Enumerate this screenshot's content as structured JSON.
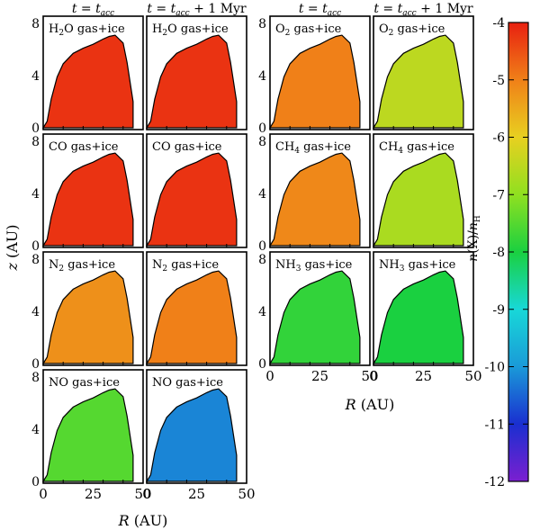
{
  "chart_data": {
    "type": "heatmap",
    "column_titles": [
      {
        "base": "t = t",
        "sub": "acc",
        "suffix": ""
      },
      {
        "base": "t = t",
        "sub": "acc",
        "suffix": " + 1 Myr"
      },
      {
        "base": "t = t",
        "sub": "acc",
        "suffix": ""
      },
      {
        "base": "t = t",
        "sub": "acc",
        "suffix": " + 1 Myr"
      }
    ],
    "panels": [
      {
        "species": "H",
        "sub": "2",
        "rest": "O gas+ice",
        "col": 0,
        "row": 0,
        "level": -4.2
      },
      {
        "species": "H",
        "sub": "2",
        "rest": "O gas+ice",
        "col": 1,
        "row": 0,
        "level": -4.2
      },
      {
        "species": "O",
        "sub": "2",
        "rest": " gas+ice",
        "col": 2,
        "row": 0,
        "level": -5.0
      },
      {
        "species": "O",
        "sub": "2",
        "rest": " gas+ice",
        "col": 3,
        "row": 0,
        "level": -6.5
      },
      {
        "species": "CO gas+ice",
        "sub": "",
        "rest": "",
        "col": 0,
        "row": 1,
        "level": -4.2
      },
      {
        "species": "CO gas+ice",
        "sub": "",
        "rest": "",
        "col": 1,
        "row": 1,
        "level": -4.2
      },
      {
        "species": "CH",
        "sub": "4",
        "rest": " gas+ice",
        "col": 2,
        "row": 1,
        "level": -5.1
      },
      {
        "species": "CH",
        "sub": "4",
        "rest": " gas+ice",
        "col": 3,
        "row": 1,
        "level": -6.7
      },
      {
        "species": "N",
        "sub": "2",
        "rest": " gas+ice",
        "col": 0,
        "row": 2,
        "level": -5.2
      },
      {
        "species": "N",
        "sub": "2",
        "rest": " gas+ice",
        "col": 1,
        "row": 2,
        "level": -5.0
      },
      {
        "species": "NH",
        "sub": "3",
        "rest": " gas+ice",
        "col": 2,
        "row": 2,
        "level": -7.8
      },
      {
        "species": "NH",
        "sub": "3",
        "rest": " gas+ice",
        "col": 3,
        "row": 2,
        "level": -8.0
      },
      {
        "species": "NO gas+ice",
        "sub": "",
        "rest": "",
        "col": 0,
        "row": 3,
        "level": -7.5
      },
      {
        "species": "NO gas+ice",
        "sub": "",
        "rest": "",
        "col": 1,
        "row": 3,
        "level": -10.2
      }
    ],
    "disk_outline_R_AU": [
      0,
      2,
      4,
      7,
      10,
      15,
      20,
      25,
      30,
      33,
      36,
      40,
      42,
      45,
      45
    ],
    "disk_outline_z_AU": [
      0,
      0.5,
      2.2,
      3.9,
      4.9,
      5.7,
      6.1,
      6.4,
      6.8,
      7.0,
      7.1,
      6.5,
      5.0,
      2.0,
      0
    ],
    "xlabel": "R (AU)",
    "ylabel": "z (AU)",
    "xlim": [
      0,
      50
    ],
    "ylim": [
      0,
      8
    ],
    "xticks": [
      0,
      25,
      50
    ],
    "yticks": [
      0,
      4,
      8
    ],
    "colorbar": {
      "label": "n(X)/n_H",
      "label_parts": {
        "a": "n",
        "b": "(X)/",
        "c": "n",
        "sub": "H"
      },
      "min": -12,
      "max": -4,
      "ticks": [
        -4,
        -5,
        -6,
        -7,
        -8,
        -9,
        -10,
        -11,
        -12
      ],
      "colormap": [
        "#7b1fd0",
        "#1a2fd0",
        "#1a9ad8",
        "#18d8d8",
        "#1ad040",
        "#90e020",
        "#e8d020",
        "#f08018",
        "#e82010"
      ]
    }
  }
}
